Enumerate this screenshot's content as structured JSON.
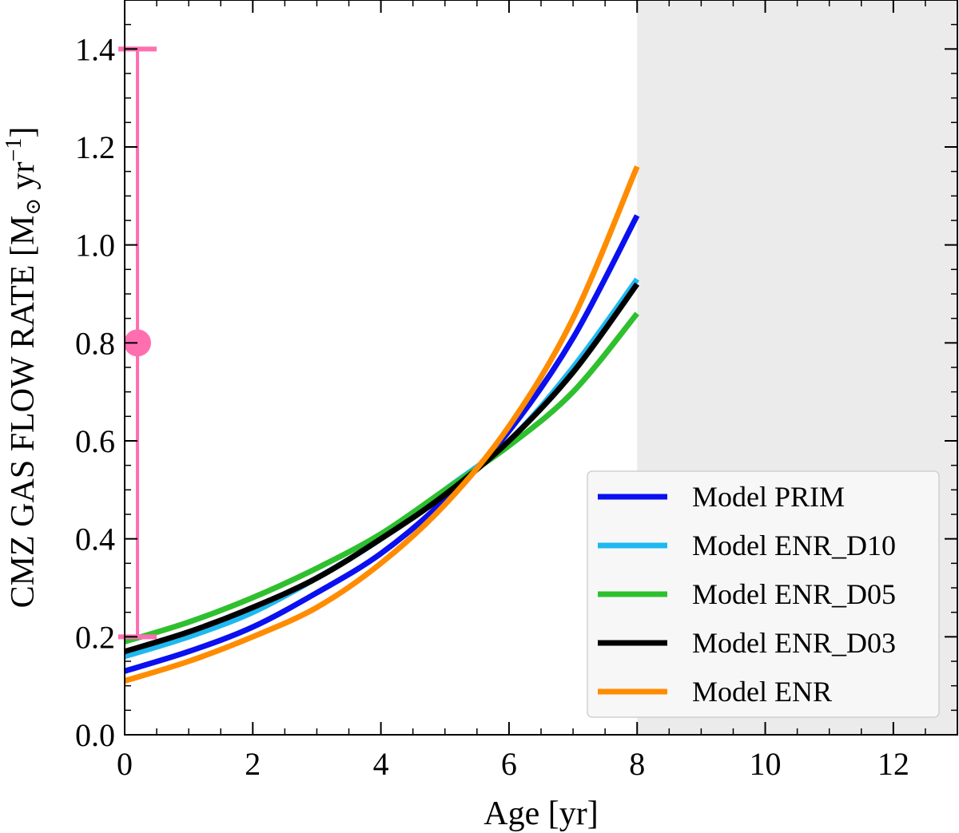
{
  "chart_data": {
    "type": "line",
    "title": "",
    "xlabel": "Age [yr]",
    "ylabel_main": "CMZ GAS FLOW RATE [M",
    "ylabel_sun": "⊙",
    "ylabel_unit": " yr",
    "ylabel_exp": "−1",
    "ylabel_close": "]",
    "xlim": [
      0,
      13
    ],
    "ylim": [
      0,
      1.5
    ],
    "xticks": [
      0,
      2,
      4,
      6,
      8,
      10,
      12
    ],
    "xtick_labels": [
      "0",
      "2",
      "4",
      "6",
      "8",
      "10",
      "12"
    ],
    "yticks": [
      0.0,
      0.2,
      0.4,
      0.6,
      0.8,
      1.0,
      1.2,
      1.4
    ],
    "ytick_labels": [
      "0.0",
      "0.2",
      "0.4",
      "0.6",
      "0.8",
      "1.0",
      "1.2",
      "1.4"
    ],
    "shaded_region": {
      "x_start": 8,
      "x_end": 13,
      "color": "#ebebeb"
    },
    "series": [
      {
        "name": "Model PRIM",
        "color": "#0a10f0",
        "x": [
          0,
          1,
          2,
          3,
          4,
          5,
          6,
          7,
          8
        ],
        "values": [
          0.13,
          0.17,
          0.22,
          0.29,
          0.37,
          0.48,
          0.62,
          0.81,
          1.06
        ]
      },
      {
        "name": "Model ENR_D10",
        "color": "#1fb8f0",
        "x": [
          0,
          1,
          2,
          3,
          4,
          5,
          6,
          7,
          8
        ],
        "values": [
          0.16,
          0.2,
          0.25,
          0.32,
          0.4,
          0.5,
          0.6,
          0.75,
          0.93
        ]
      },
      {
        "name": "Model ENR_D05",
        "color": "#2ec02e",
        "x": [
          0,
          1,
          2,
          3,
          4,
          5,
          6,
          7,
          8
        ],
        "values": [
          0.19,
          0.23,
          0.28,
          0.34,
          0.41,
          0.5,
          0.59,
          0.7,
          0.86
        ]
      },
      {
        "name": "Model ENR_D03",
        "color": "#000000",
        "x": [
          0,
          1,
          2,
          3,
          4,
          5,
          6,
          7,
          8
        ],
        "values": [
          0.17,
          0.21,
          0.26,
          0.32,
          0.4,
          0.49,
          0.6,
          0.74,
          0.92
        ]
      },
      {
        "name": "Model ENR",
        "color": "#ff8c00",
        "x": [
          0,
          1,
          2,
          3,
          4,
          5,
          6,
          7,
          8
        ],
        "values": [
          0.11,
          0.15,
          0.2,
          0.26,
          0.35,
          0.47,
          0.63,
          0.85,
          1.16
        ]
      }
    ],
    "error_point": {
      "x": 0.2,
      "y": 0.8,
      "ylow": 0.2,
      "yhigh": 1.4,
      "cap_halfwidth": 0.3,
      "color": "#ff6fb0"
    },
    "legend": {
      "position": "lower-right",
      "entries": [
        "Model PRIM",
        "Model ENR_D10",
        "Model ENR_D05",
        "Model ENR_D03",
        "Model ENR"
      ]
    }
  }
}
